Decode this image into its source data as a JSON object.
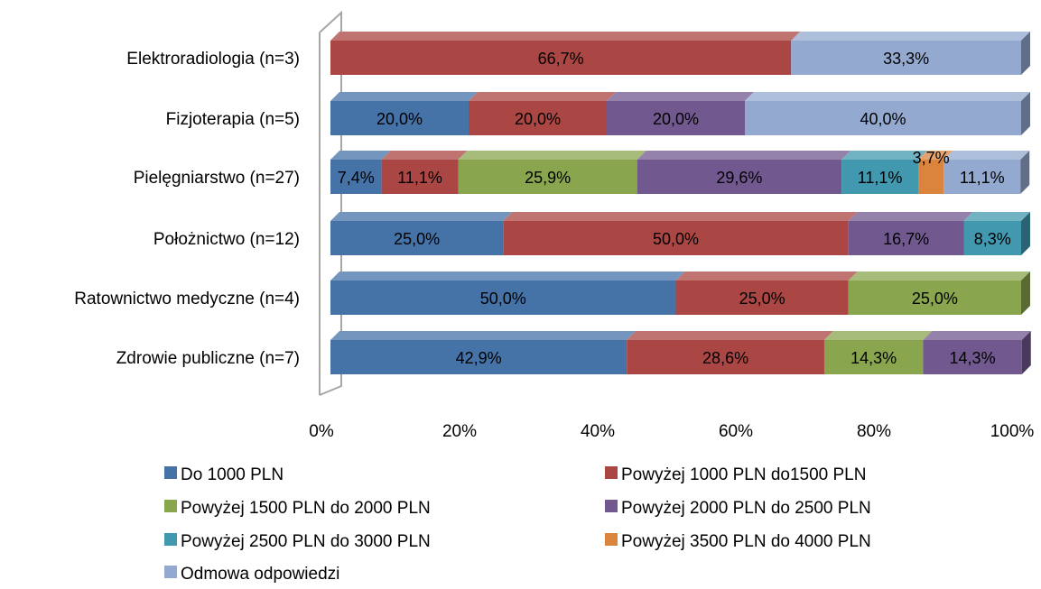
{
  "chart_data": {
    "type": "bar",
    "orientation": "horizontal",
    "stacked": "100%",
    "title": "",
    "categories": [
      "Elektroradiologia (n=3)",
      "Fizjoterapia (n=5)",
      "Pielęgniarstwo (n=27)",
      "Położnictwo (n=12)",
      "Ratownictwo medyczne (n=4)",
      "Zdrowie publiczne (n=7)"
    ],
    "series": [
      {
        "name": "Do 1000 PLN",
        "color": "#4572A7",
        "values": [
          0,
          20.0,
          7.4,
          25.0,
          50.0,
          42.9
        ],
        "labels": [
          "",
          "20,0%",
          "7,4%",
          "25,0%",
          "50,0%",
          "42,9%"
        ]
      },
      {
        "name": "Powyżej 1000 PLN do1500 PLN",
        "color": "#AA4643",
        "values": [
          66.7,
          20.0,
          11.1,
          50.0,
          25.0,
          28.6
        ],
        "labels": [
          "66,7%",
          "20,0%",
          "11,1%",
          "50,0%",
          "25,0%",
          "28,6%"
        ]
      },
      {
        "name": "Powyżej 1500 PLN do 2000 PLN",
        "color": "#89A54E",
        "values": [
          0,
          0,
          25.9,
          0,
          25.0,
          14.3
        ],
        "labels": [
          "",
          "",
          "25,9%",
          "",
          "25,0%",
          "14,3%"
        ]
      },
      {
        "name": "Powyżej 2000 PLN do 2500 PLN",
        "color": "#71588F",
        "values": [
          0,
          20.0,
          29.6,
          16.7,
          0,
          14.3
        ],
        "labels": [
          "",
          "20,0%",
          "29,6%",
          "16,7%",
          "",
          "14,3%"
        ]
      },
      {
        "name": "Powyżej 2500 PLN do 3000 PLN",
        "color": "#4198AF",
        "values": [
          0,
          0,
          11.1,
          8.3,
          0,
          0
        ],
        "labels": [
          "",
          "",
          "11,1%",
          "8,3%",
          "",
          ""
        ]
      },
      {
        "name": "Powyżej 3500 PLN do 4000 PLN",
        "color": "#DB843D",
        "values": [
          0,
          0,
          3.7,
          0,
          0,
          0
        ],
        "labels": [
          "",
          "",
          "3,7%",
          "",
          "",
          ""
        ]
      },
      {
        "name": "Odmowa odpowiedzi",
        "color": "#93A9CF",
        "values": [
          33.3,
          40.0,
          11.1,
          0,
          0,
          0
        ],
        "labels": [
          "33,3%",
          "40,0%",
          "11,1%",
          "",
          "",
          ""
        ]
      }
    ],
    "xlim": [
      0,
      100
    ],
    "xticks": [
      "0%",
      "20%",
      "40%",
      "60%",
      "80%",
      "100%"
    ],
    "grid": false,
    "legend_position": "bottom"
  }
}
